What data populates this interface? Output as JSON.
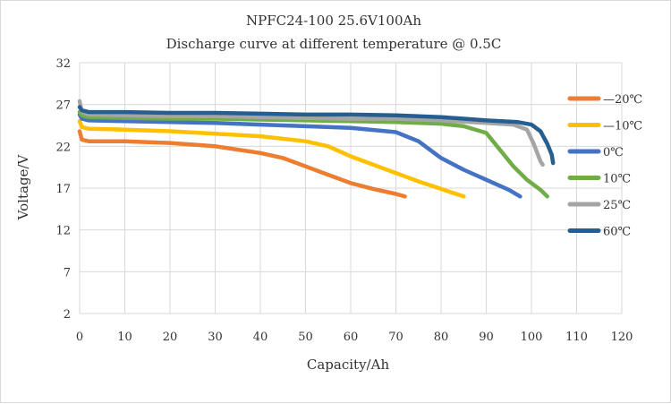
{
  "chart_data": {
    "type": "line",
    "title": "NPFC24-100 25.6V100Ah",
    "subtitle": "Discharge curve at different temperature @ 0.5C",
    "xlabel": "Capacity/Ah",
    "ylabel": "Voltage/V",
    "xlim": [
      0,
      120
    ],
    "ylim": [
      2,
      32
    ],
    "x_ticks": [
      0,
      10,
      20,
      30,
      40,
      50,
      60,
      70,
      80,
      90,
      100,
      110,
      120
    ],
    "y_ticks": [
      2,
      7,
      12,
      17,
      22,
      27,
      32
    ],
    "grid": true,
    "legend_position": "right",
    "series": [
      {
        "name": "—20℃",
        "color": "#ED7D31",
        "points": [
          [
            0,
            23.8
          ],
          [
            0.5,
            22.8
          ],
          [
            2,
            22.6
          ],
          [
            10,
            22.6
          ],
          [
            20,
            22.4
          ],
          [
            30,
            22.0
          ],
          [
            40,
            21.2
          ],
          [
            45,
            20.6
          ],
          [
            50,
            19.6
          ],
          [
            55,
            18.6
          ],
          [
            60,
            17.6
          ],
          [
            65,
            16.9
          ],
          [
            70,
            16.3
          ],
          [
            72,
            16.0
          ]
        ]
      },
      {
        "name": "—10℃",
        "color": "#FFC000",
        "points": [
          [
            0,
            25.0
          ],
          [
            0.5,
            24.3
          ],
          [
            2,
            24.1
          ],
          [
            10,
            24.0
          ],
          [
            20,
            23.8
          ],
          [
            30,
            23.5
          ],
          [
            40,
            23.2
          ],
          [
            50,
            22.6
          ],
          [
            55,
            22.0
          ],
          [
            60,
            20.8
          ],
          [
            65,
            19.8
          ],
          [
            70,
            18.8
          ],
          [
            75,
            17.8
          ],
          [
            80,
            16.9
          ],
          [
            85,
            16.0
          ]
        ]
      },
      {
        "name": "0℃",
        "color": "#4472C4",
        "points": [
          [
            0,
            25.8
          ],
          [
            0.5,
            25.3
          ],
          [
            2,
            25.1
          ],
          [
            10,
            25.0
          ],
          [
            20,
            24.9
          ],
          [
            30,
            24.8
          ],
          [
            40,
            24.6
          ],
          [
            50,
            24.4
          ],
          [
            60,
            24.2
          ],
          [
            70,
            23.7
          ],
          [
            75,
            22.6
          ],
          [
            80,
            20.6
          ],
          [
            85,
            19.2
          ],
          [
            90,
            18.0
          ],
          [
            95,
            16.8
          ],
          [
            97.5,
            16.0
          ]
        ]
      },
      {
        "name": "10℃",
        "color": "#70AD47",
        "points": [
          [
            0,
            26.1
          ],
          [
            0.5,
            25.7
          ],
          [
            2,
            25.5
          ],
          [
            10,
            25.4
          ],
          [
            20,
            25.3
          ],
          [
            30,
            25.3
          ],
          [
            40,
            25.2
          ],
          [
            50,
            25.1
          ],
          [
            60,
            25.0
          ],
          [
            70,
            24.9
          ],
          [
            80,
            24.7
          ],
          [
            85,
            24.4
          ],
          [
            90,
            23.6
          ],
          [
            93,
            21.6
          ],
          [
            96,
            19.6
          ],
          [
            99,
            18.0
          ],
          [
            102,
            16.8
          ],
          [
            103.5,
            16.0
          ]
        ]
      },
      {
        "name": "25℃",
        "color": "#A5A5A5",
        "points": [
          [
            0,
            27.4
          ],
          [
            0.5,
            26.1
          ],
          [
            2,
            25.8
          ],
          [
            10,
            25.7
          ],
          [
            20,
            25.6
          ],
          [
            30,
            25.6
          ],
          [
            40,
            25.5
          ],
          [
            50,
            25.4
          ],
          [
            60,
            25.3
          ],
          [
            70,
            25.3
          ],
          [
            80,
            25.1
          ],
          [
            90,
            24.8
          ],
          [
            96,
            24.6
          ],
          [
            99,
            24.0
          ],
          [
            100.5,
            22.3
          ],
          [
            102,
            20.2
          ],
          [
            102.5,
            19.8
          ]
        ]
      },
      {
        "name": "60℃",
        "color": "#255E91",
        "points": [
          [
            0,
            26.7
          ],
          [
            0.5,
            26.3
          ],
          [
            2,
            26.1
          ],
          [
            10,
            26.1
          ],
          [
            20,
            26.0
          ],
          [
            30,
            26.0
          ],
          [
            40,
            25.9
          ],
          [
            50,
            25.8
          ],
          [
            60,
            25.8
          ],
          [
            70,
            25.7
          ],
          [
            80,
            25.5
          ],
          [
            90,
            25.1
          ],
          [
            97,
            24.9
          ],
          [
            100,
            24.6
          ],
          [
            102,
            23.8
          ],
          [
            103.5,
            22.3
          ],
          [
            104.5,
            21.0
          ],
          [
            104.8,
            20.0
          ]
        ]
      }
    ]
  }
}
